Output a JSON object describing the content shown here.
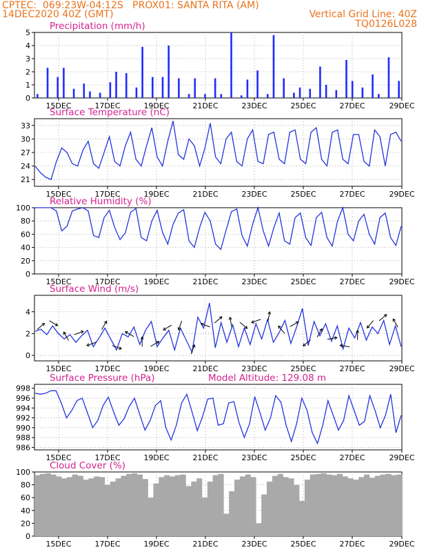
{
  "header": {
    "line1_left": "CPTEC:  069:23W-04:12S   PROX01: SANTA RITA (AM)",
    "line2_left": "14DEC2020 40Z (GMT)",
    "line2_right": "Vertical Grid Line: 40Z",
    "line3_right": "TQ0126L028",
    "model_altitude": "Model Altitude: 129.08 m"
  },
  "colors": {
    "header": "#e8731c",
    "title": "#d4228e",
    "series": "#2233dd",
    "bars": "#1f2bff",
    "cloud": "#a9a9a9",
    "arrows": "#000000",
    "grid": "#9a9a9a"
  },
  "chart_data": [
    {
      "type": "bar",
      "title": "Precipitation (mm/h)",
      "x_tick_labels": [
        "15DEC",
        "17DEC",
        "19DEC",
        "21DEC",
        "23DEC",
        "25DEC",
        "27DEC",
        "29DEC"
      ],
      "ylim": [
        0,
        5
      ],
      "y_ticks": [
        0,
        1,
        2,
        3,
        4,
        5
      ],
      "grid": true,
      "series": [
        {
          "values": [
            0.3,
            2.3,
            1.6,
            2.3,
            0.7,
            1.1,
            0.5,
            0.4,
            1.2,
            2.0,
            1.9,
            0.8,
            3.9,
            1.6,
            1.6,
            4.0,
            1.5,
            0.3,
            1.5,
            0.3,
            1.5,
            0.3,
            5.0,
            0.2,
            1.4,
            2.1,
            0.3,
            4.8,
            1.5,
            0.4,
            0.8,
            0.7,
            2.4,
            1.0,
            0.6,
            2.9,
            1.3,
            0.8,
            1.8,
            0.3,
            3.1,
            1.3
          ]
        }
      ]
    },
    {
      "type": "line",
      "title": "Surface Temperature (nC)",
      "x_tick_labels": [
        "15DEC",
        "17DEC",
        "19DEC",
        "21DEC",
        "23DEC",
        "25DEC",
        "27DEC",
        "29DEC"
      ],
      "ylim": [
        19.5,
        34.5
      ],
      "y_ticks": [
        21,
        24,
        27,
        30,
        33
      ],
      "grid": true,
      "series": [
        {
          "values": [
            24,
            22.5,
            21.5,
            21,
            25,
            28,
            27,
            24.5,
            24,
            27.5,
            29.5,
            24.5,
            23.5,
            27,
            30.5,
            25,
            24,
            28.5,
            31.5,
            25.5,
            24,
            28.5,
            32.5,
            26,
            24,
            29.5,
            34,
            26.5,
            25.5,
            30,
            28.5,
            24,
            28,
            33.5,
            26,
            24.5,
            30,
            31.5,
            25,
            24,
            30,
            32,
            25,
            24.5,
            31,
            31.5,
            25.5,
            24.5,
            31.5,
            32,
            25.5,
            24.5,
            31.5,
            32.5,
            25.5,
            24,
            31.5,
            32,
            25.5,
            24.5,
            31,
            31,
            25,
            24,
            32,
            30.5,
            24,
            31,
            31.5,
            29.5
          ]
        }
      ]
    },
    {
      "type": "line",
      "title": "Relative Humidity (%)",
      "x_tick_labels": [
        "15DEC",
        "17DEC",
        "19DEC",
        "21DEC",
        "23DEC",
        "25DEC",
        "27DEC",
        "29DEC"
      ],
      "ylim": [
        0,
        100
      ],
      "y_ticks": [
        0,
        20,
        40,
        60,
        80,
        100
      ],
      "grid": true,
      "series": [
        {
          "values": [
            100,
            100,
            100,
            100,
            95,
            65,
            72,
            95,
            98,
            100,
            95,
            58,
            55,
            85,
            96,
            70,
            52,
            62,
            93,
            99,
            55,
            50,
            80,
            96,
            63,
            45,
            75,
            92,
            97,
            50,
            40,
            70,
            93,
            80,
            45,
            37,
            66,
            94,
            98,
            58,
            42,
            75,
            100,
            65,
            42,
            70,
            92,
            50,
            45,
            85,
            92,
            55,
            43,
            85,
            93,
            55,
            42,
            80,
            100,
            60,
            50,
            80,
            90,
            60,
            45,
            85,
            92,
            55,
            43,
            72
          ]
        }
      ]
    },
    {
      "type": "line",
      "title": "Surface Wind (m/s)",
      "x_tick_labels": [
        "15DEC",
        "17DEC",
        "19DEC",
        "21DEC",
        "23DEC",
        "25DEC",
        "27DEC",
        "29DEC"
      ],
      "ylim": [
        -0.5,
        5.5
      ],
      "y_ticks": [
        0,
        2,
        4
      ],
      "grid": true,
      "series": [
        {
          "values": [
            2.2,
            2.4,
            1.9,
            2.7,
            2.0,
            1.5,
            1.9,
            1.2,
            1.8,
            2.3,
            0.8,
            1.6,
            2.5,
            1.5,
            0.5,
            2.0,
            1.7,
            2.6,
            1.0,
            2.3,
            3.1,
            0.8,
            1.6,
            2.3,
            0.5,
            2.5,
            1.4,
            0.3,
            3.5,
            2.5,
            4.8,
            0.7,
            3.0,
            1.2,
            2.8,
            0.8,
            2.5,
            1.0,
            2.9,
            1.5,
            3.3,
            1.2,
            2.1,
            3.2,
            1.1,
            2.6,
            4.3,
            0.9,
            3.1,
            1.8,
            2.9,
            1.3,
            2.7,
            0.6,
            2.5,
            1.6,
            3.0,
            1.4,
            2.6,
            2.0,
            3.2,
            1.0,
            2.7,
            0.8
          ]
        }
      ]
    },
    {
      "type": "line",
      "title": "Surface Pressure (hPa)",
      "x_tick_labels": [
        "15DEC",
        "17DEC",
        "19DEC",
        "21DEC",
        "23DEC",
        "25DEC",
        "27DEC",
        "29DEC"
      ],
      "ylim": [
        985.5,
        998.8
      ],
      "y_ticks": [
        986,
        988,
        990,
        992,
        994,
        996,
        998
      ],
      "grid": true,
      "series": [
        {
          "values": [
            997,
            996.8,
            997,
            997.5,
            997.5,
            995,
            992,
            993.5,
            995.5,
            996,
            993,
            990,
            991.5,
            994.5,
            996.2,
            993.2,
            990.5,
            991.8,
            994.3,
            996,
            992.7,
            989.5,
            991.5,
            994.5,
            995.5,
            990,
            987.5,
            990.5,
            995,
            996.8,
            993.2,
            989.4,
            992.2,
            995.8,
            996,
            990.5,
            990.8,
            995,
            995.3,
            991,
            988,
            990.8,
            996.3,
            993,
            989.5,
            992,
            996.5,
            995.2,
            990.5,
            987.2,
            990.8,
            996,
            993.5,
            989,
            986.8,
            990.5,
            995.5,
            992.5,
            989.5,
            991.5,
            996.5,
            993.5,
            990.5,
            991.3,
            996.5,
            993.5,
            990,
            992.5,
            996.8,
            989,
            992.5
          ]
        }
      ]
    },
    {
      "type": "area",
      "title": "Cloud Cover (%)",
      "x_tick_labels": [
        "15DEC",
        "17DEC",
        "19DEC",
        "21DEC",
        "23DEC",
        "25DEC",
        "27DEC",
        "29DEC"
      ],
      "ylim": [
        0,
        100
      ],
      "y_ticks": [
        0,
        20,
        40,
        60,
        80,
        100
      ],
      "grid": true,
      "series": [
        {
          "values": [
            95,
            97,
            98,
            96,
            93,
            90,
            92,
            96,
            94,
            88,
            90,
            93,
            92,
            80,
            85,
            90,
            94,
            97,
            98,
            96,
            89,
            60,
            82,
            92,
            95,
            93,
            95,
            96,
            78,
            85,
            90,
            60,
            85,
            95,
            97,
            35,
            70,
            88,
            93,
            96,
            92,
            20,
            65,
            85,
            94,
            97,
            92,
            90,
            80,
            55,
            88,
            96,
            97,
            98,
            96,
            95,
            97,
            93,
            90,
            88,
            92,
            96,
            91,
            94,
            96,
            97,
            95,
            96
          ]
        }
      ]
    }
  ]
}
